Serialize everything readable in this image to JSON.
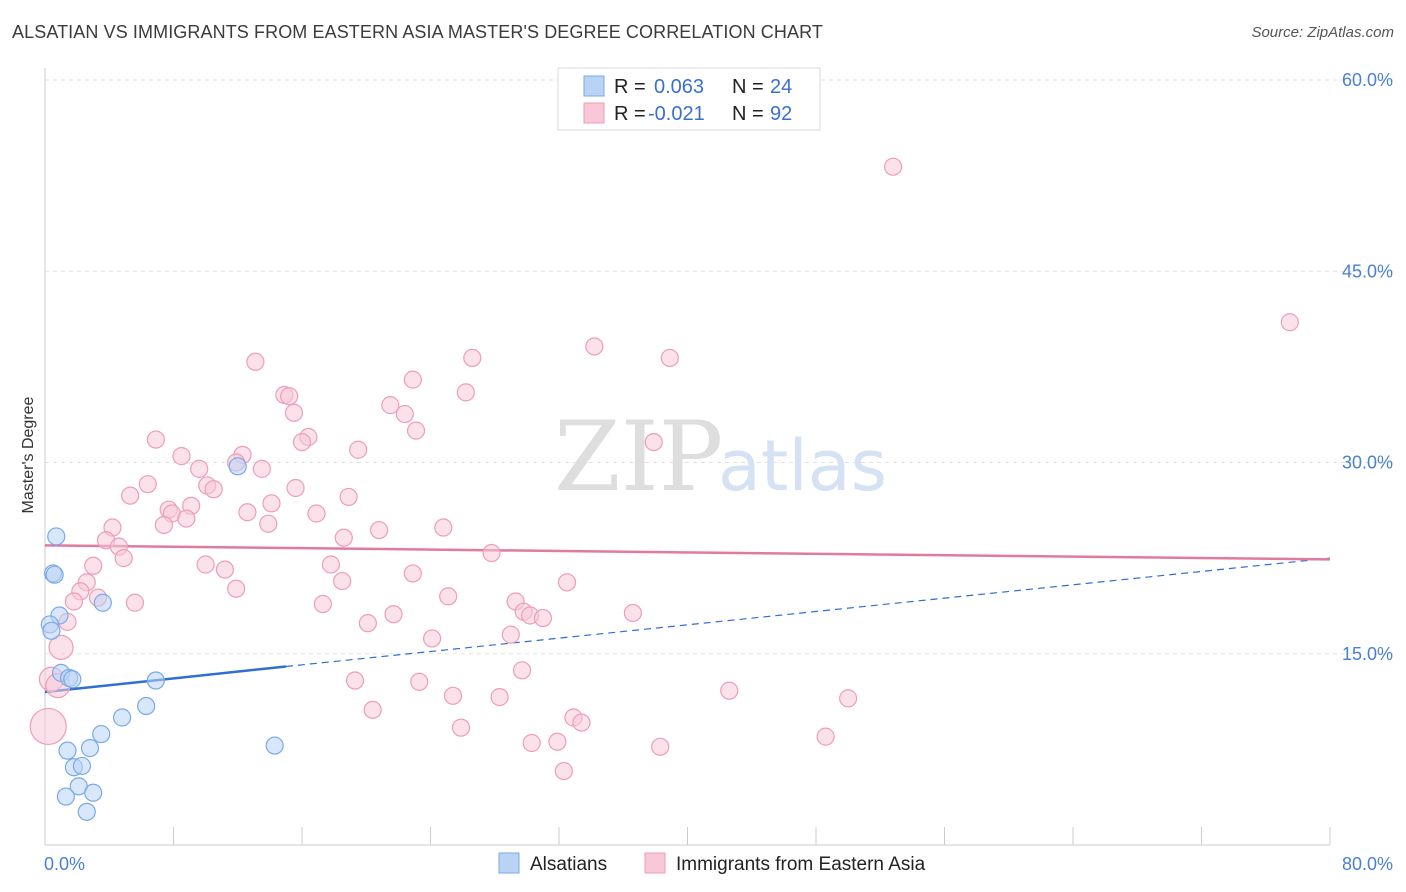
{
  "title": "ALSATIAN VS IMMIGRANTS FROM EASTERN ASIA MASTER'S DEGREE CORRELATION CHART",
  "source": "Source: ZipAtlas.com",
  "watermark": {
    "zip": "ZIP",
    "atlas": "atlas"
  },
  "chart_data": {
    "type": "scatter",
    "xlim": [
      0,
      80
    ],
    "ylim": [
      0,
      60
    ],
    "x_tick_labels": [
      {
        "value": 0,
        "label": "0.0%"
      },
      {
        "value": 80,
        "label": "80.0%"
      }
    ],
    "y_tick_labels": [
      {
        "value": 15,
        "label": "15.0%"
      },
      {
        "value": 30,
        "label": "30.0%"
      },
      {
        "value": 45,
        "label": "45.0%"
      },
      {
        "value": 60,
        "label": "60.0%"
      }
    ],
    "ylabel": "Master's Degree",
    "grid": true,
    "legend_stats": [
      {
        "r_label": "R =",
        "r_value": "0.063",
        "n_label": "N =",
        "n_value": "24"
      },
      {
        "r_label": "R =",
        "r_value": "-0.021",
        "n_label": "N =",
        "n_value": "92"
      }
    ],
    "series": [
      {
        "name": "Alsatians",
        "color": "#7aa9e6",
        "fill": "#b9d3f5",
        "line_color": "#2f6fcf",
        "trend": {
          "x0": 0,
          "y0": 12.0,
          "x1": 15,
          "y1": 14.0,
          "dashed_to_x": 80,
          "dashed_to_y": 22.5
        },
        "points": [
          [
            0.7,
            24.2
          ],
          [
            0.5,
            21.3
          ],
          [
            0.6,
            21.2
          ],
          [
            0.9,
            18.0
          ],
          [
            0.3,
            17.3
          ],
          [
            0.4,
            16.8
          ],
          [
            3.6,
            19.0
          ],
          [
            1.0,
            13.5
          ],
          [
            1.5,
            13.1
          ],
          [
            1.7,
            13.0
          ],
          [
            6.9,
            12.9
          ],
          [
            12.0,
            29.7
          ],
          [
            6.3,
            10.9
          ],
          [
            4.8,
            10.0
          ],
          [
            3.5,
            8.7
          ],
          [
            2.8,
            7.6
          ],
          [
            1.4,
            7.4
          ],
          [
            14.3,
            7.8
          ],
          [
            1.8,
            6.1
          ],
          [
            2.3,
            6.2
          ],
          [
            2.1,
            4.6
          ],
          [
            1.3,
            3.8
          ],
          [
            3.0,
            4.1
          ],
          [
            2.6,
            2.6
          ]
        ]
      },
      {
        "name": "Immigrants from Eastern Asia",
        "color": "#ee9db8",
        "fill": "#f8c8d8",
        "line_color": "#e07aa0",
        "trend": {
          "x0": 0,
          "y0": 23.5,
          "x1": 80,
          "y1": 22.4
        },
        "points": [
          [
            52.8,
            53.2
          ],
          [
            77.5,
            41.0
          ],
          [
            34.2,
            39.1
          ],
          [
            38.9,
            38.2
          ],
          [
            26.6,
            38.2
          ],
          [
            13.1,
            37.9
          ],
          [
            22.9,
            36.5
          ],
          [
            26.2,
            35.5
          ],
          [
            14.9,
            35.3
          ],
          [
            15.2,
            35.2
          ],
          [
            21.5,
            34.5
          ],
          [
            22.4,
            33.8
          ],
          [
            15.5,
            33.9
          ],
          [
            23.1,
            32.5
          ],
          [
            16.4,
            32.0
          ],
          [
            16.0,
            31.6
          ],
          [
            6.9,
            31.8
          ],
          [
            37.9,
            31.6
          ],
          [
            19.5,
            31.0
          ],
          [
            12.3,
            30.6
          ],
          [
            8.5,
            30.5
          ],
          [
            11.9,
            30.0
          ],
          [
            9.6,
            29.5
          ],
          [
            13.5,
            29.5
          ],
          [
            6.4,
            28.3
          ],
          [
            10.1,
            28.2
          ],
          [
            10.5,
            27.9
          ],
          [
            15.6,
            28.0
          ],
          [
            5.3,
            27.4
          ],
          [
            18.9,
            27.3
          ],
          [
            14.1,
            26.8
          ],
          [
            9.1,
            26.6
          ],
          [
            7.7,
            26.3
          ],
          [
            7.9,
            26.0
          ],
          [
            12.6,
            26.1
          ],
          [
            16.9,
            26.0
          ],
          [
            8.8,
            25.6
          ],
          [
            13.9,
            25.2
          ],
          [
            7.4,
            25.1
          ],
          [
            4.2,
            24.9
          ],
          [
            24.8,
            24.9
          ],
          [
            20.8,
            24.7
          ],
          [
            18.6,
            24.1
          ],
          [
            3.8,
            23.9
          ],
          [
            4.6,
            23.4
          ],
          [
            27.8,
            22.9
          ],
          [
            4.9,
            22.5
          ],
          [
            10.0,
            22.0
          ],
          [
            17.8,
            22.0
          ],
          [
            3.0,
            21.9
          ],
          [
            11.2,
            21.6
          ],
          [
            22.9,
            21.3
          ],
          [
            18.5,
            20.7
          ],
          [
            32.5,
            20.6
          ],
          [
            2.6,
            20.6
          ],
          [
            11.9,
            20.1
          ],
          [
            2.2,
            19.9
          ],
          [
            25.1,
            19.5
          ],
          [
            1.8,
            19.1
          ],
          [
            3.3,
            19.4
          ],
          [
            5.6,
            19.0
          ],
          [
            17.3,
            18.9
          ],
          [
            29.3,
            19.1
          ],
          [
            29.8,
            18.3
          ],
          [
            30.2,
            18.0
          ],
          [
            36.6,
            18.2
          ],
          [
            21.7,
            18.1
          ],
          [
            31.0,
            17.8
          ],
          [
            20.1,
            17.4
          ],
          [
            1.4,
            17.5
          ],
          [
            29.0,
            16.5
          ],
          [
            24.1,
            16.2
          ],
          [
            1.0,
            15.5
          ],
          [
            29.7,
            13.7
          ],
          [
            0.4,
            13.0
          ],
          [
            19.3,
            12.9
          ],
          [
            23.3,
            12.8
          ],
          [
            42.6,
            12.1
          ],
          [
            50.0,
            11.5
          ],
          [
            25.4,
            11.7
          ],
          [
            28.3,
            11.6
          ],
          [
            20.4,
            10.6
          ],
          [
            32.9,
            10.0
          ],
          [
            33.4,
            9.6
          ],
          [
            25.9,
            9.2
          ],
          [
            0.2,
            9.3
          ],
          [
            48.6,
            8.5
          ],
          [
            30.3,
            8.0
          ],
          [
            31.9,
            8.1
          ],
          [
            38.3,
            7.7
          ],
          [
            32.3,
            5.8
          ],
          [
            0.8,
            12.5
          ]
        ]
      }
    ]
  }
}
